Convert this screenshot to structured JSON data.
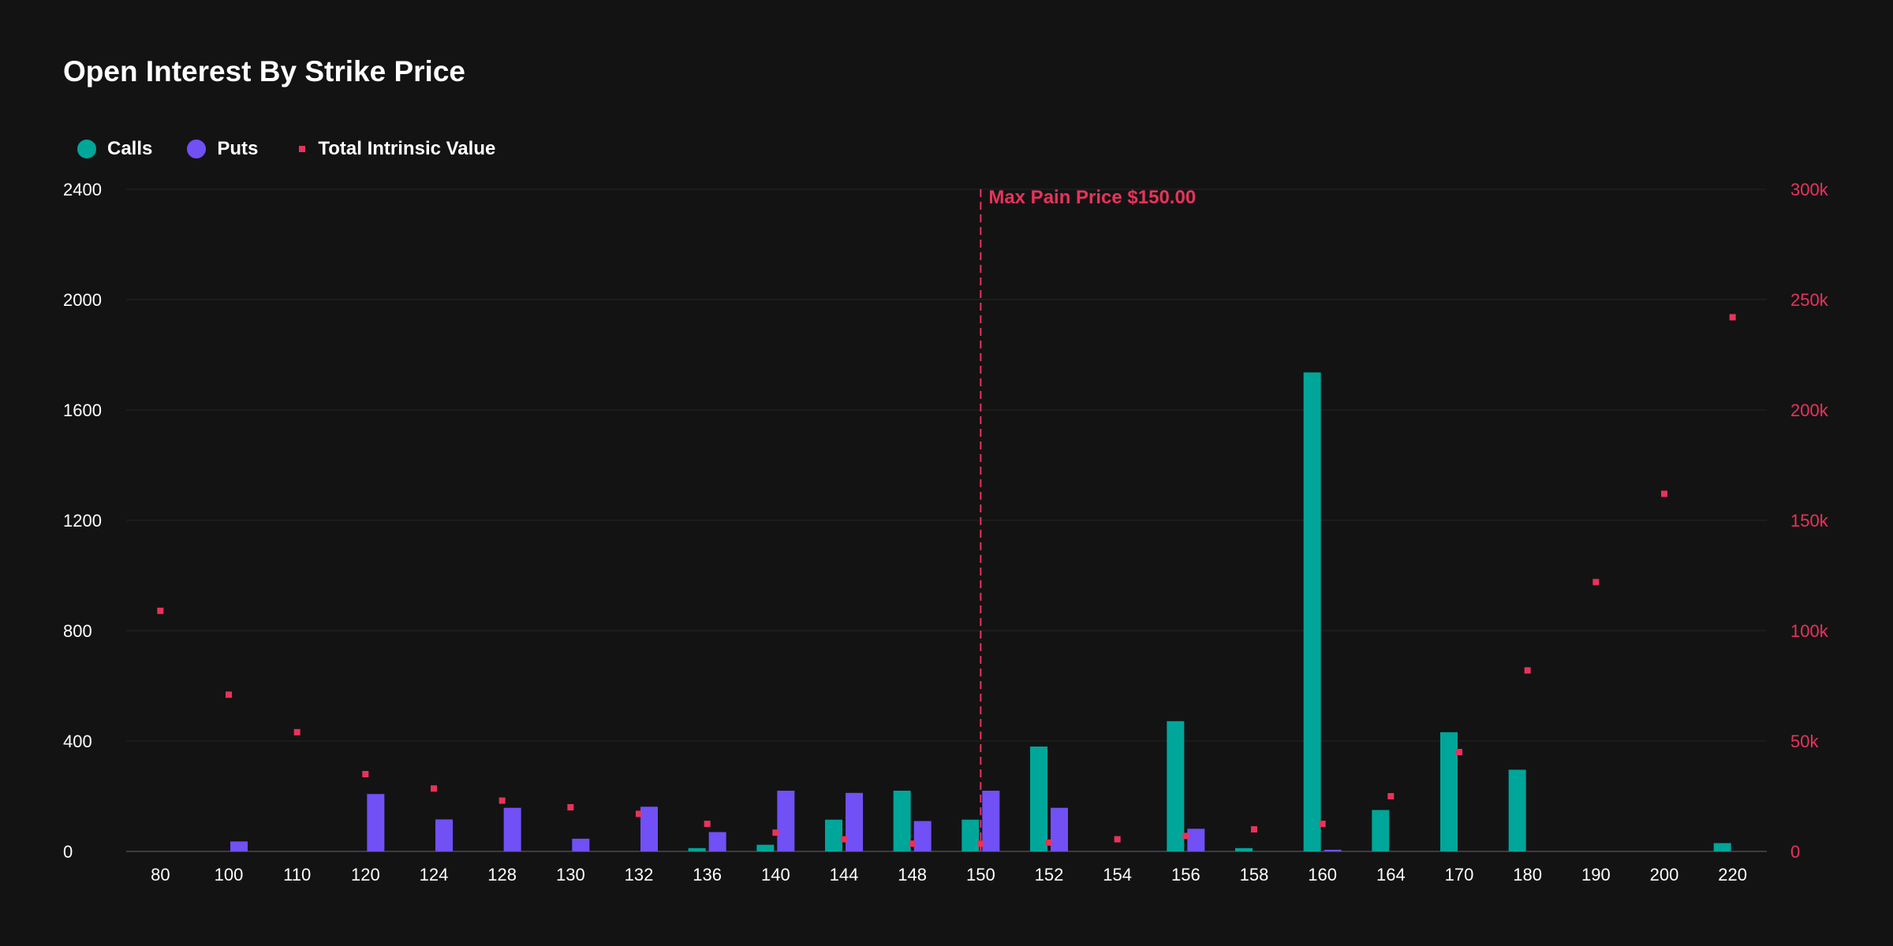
{
  "chart_data": {
    "type": "bar",
    "title": "Open Interest By Strike Price",
    "categories": [
      "80",
      "100",
      "110",
      "120",
      "124",
      "128",
      "130",
      "132",
      "136",
      "140",
      "144",
      "148",
      "150",
      "152",
      "154",
      "156",
      "158",
      "160",
      "164",
      "170",
      "180",
      "190",
      "200",
      "220"
    ],
    "series": [
      {
        "name": "Calls",
        "kind": "bar",
        "axis": "left",
        "color": "#00a699",
        "values": [
          0,
          0,
          0,
          0,
          0,
          0,
          0,
          0,
          12,
          24,
          115,
          220,
          115,
          380,
          0,
          472,
          12,
          1736,
          150,
          432,
          296,
          0,
          0,
          30
        ]
      },
      {
        "name": "Puts",
        "kind": "bar",
        "axis": "left",
        "color": "#7150f5",
        "values": [
          0,
          36,
          0,
          208,
          116,
          158,
          46,
          162,
          70,
          220,
          212,
          110,
          220,
          158,
          0,
          82,
          0,
          6,
          0,
          0,
          0,
          0,
          0,
          0
        ]
      },
      {
        "name": "Total Intrinsic Value",
        "kind": "scatter",
        "axis": "right",
        "color": "#e8335a",
        "values": [
          109000,
          71000,
          54000,
          35000,
          28500,
          23000,
          20000,
          17000,
          12500,
          8500,
          5500,
          3500,
          3500,
          4000,
          5500,
          7000,
          10000,
          12500,
          25000,
          45000,
          82000,
          122000,
          162000,
          242000
        ]
      }
    ],
    "y_left": {
      "min": 0,
      "max": 2400,
      "ticks": [
        0,
        400,
        800,
        1200,
        1600,
        2000,
        2400
      ]
    },
    "y_right": {
      "min": 0,
      "max": 300000,
      "ticks": [
        0,
        50000,
        100000,
        150000,
        200000,
        250000,
        300000
      ],
      "tick_labels": [
        "0",
        "50k",
        "100k",
        "150k",
        "200k",
        "250k",
        "300k"
      ]
    },
    "annotation": {
      "label": "Max Pain Price $150.00",
      "category": "150"
    },
    "legend_position": "top-left",
    "grid": true
  },
  "colors": {
    "background": "#131314",
    "grid": "#262628",
    "axis": "#3c3c40",
    "text": "#ffffff",
    "accent_red": "#e8335a"
  }
}
